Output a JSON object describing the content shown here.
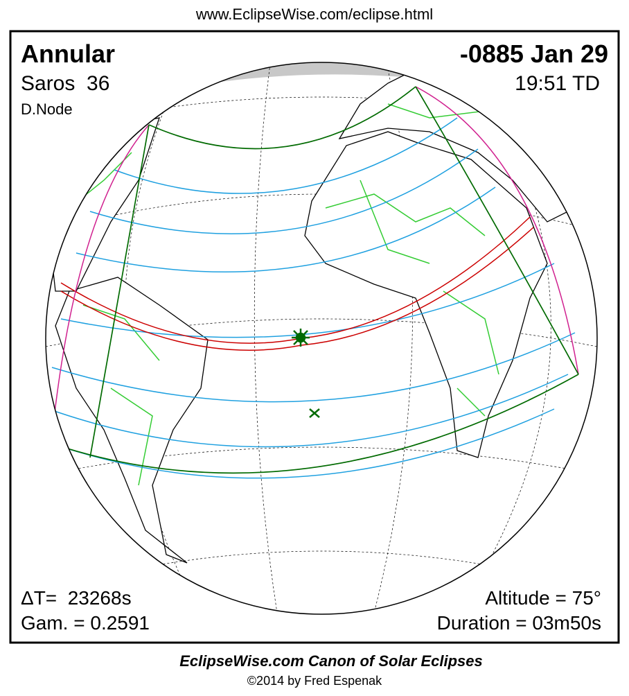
{
  "header": {
    "url": "www.EclipseWise.com/eclipse.html"
  },
  "title": {
    "type": "Annular",
    "saros": "Saros  36",
    "node": "D.Node",
    "date": "-0885 Jan 29",
    "time": "19:51 TD"
  },
  "details": {
    "delta_t": "ΔT=  23268s",
    "gamma": "Gam. = 0.2591",
    "altitude": "Altitude = 75°",
    "duration": "Duration = 03m50s"
  },
  "footer": {
    "title": "EclipseWise.com Canon of Solar Eclipses",
    "credit": "©2014 by Fred Espenak"
  }
}
